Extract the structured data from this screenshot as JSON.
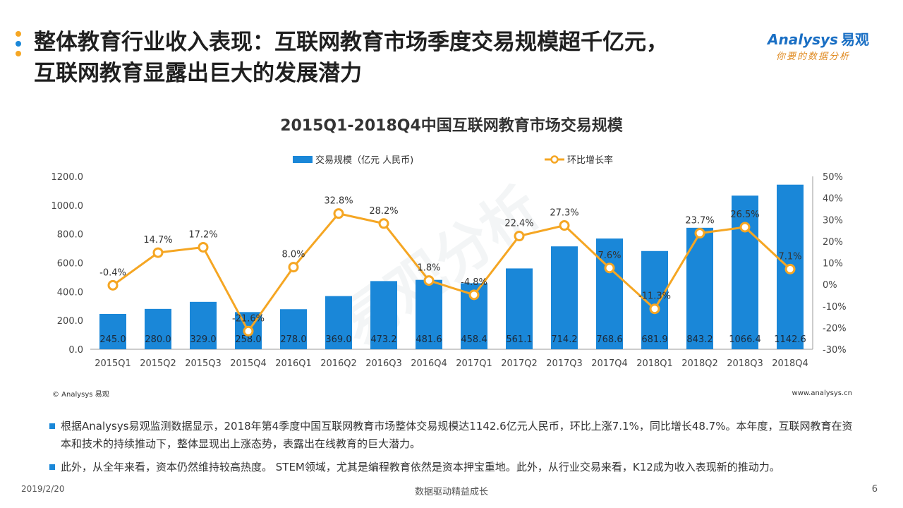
{
  "slide": {
    "title_line1": "整体教育行业收入表现：互联网教育市场季度交易规模超千亿元，",
    "title_line2": "互联网教育显露出巨大的发展潜力",
    "logo_main": "nalysys",
    "logo_prefix": "A",
    "logo_cn": "易观",
    "logo_slogan": "你要的数据分析",
    "bullet_colors": [
      "#f5a623",
      "#1a87d8",
      "#f5a623"
    ],
    "copyright": "© Analysys 易观",
    "website": "www.analysys.cn",
    "notes": [
      "根据Analysys易观监测数据显示，2018年第4季度中国互联网教育市场整体交易规模达1142.6亿元人民币，环比上涨7.1%，同比增长48.7%。本年度，互联网教育在资本和技术的持续推动下，整体显现出上涨态势，表露出在线教育的巨大潜力。",
      "此外，从全年来看，资本仍然维持较高热度。 STEM领域，尤其是编程教育依然是资本押宝重地。此外，从行业交易来看，K12成为收入表现新的推动力。"
    ],
    "footer_date": "2019/2/20",
    "footer_slogan": "数据驱动精益成长",
    "page_number": "6"
  },
  "chart_data": {
    "type": "bar+line",
    "title": "2015Q1-2018Q4中国互联网教育市场交易规模",
    "categories": [
      "2015Q1",
      "2015Q2",
      "2015Q3",
      "2015Q4",
      "2016Q1",
      "2016Q2",
      "2016Q3",
      "2016Q4",
      "2017Q1",
      "2017Q2",
      "2017Q3",
      "2017Q4",
      "2018Q1",
      "2018Q2",
      "2018Q3",
      "2018Q4"
    ],
    "series": [
      {
        "name": "交易规模（亿元 人民币)",
        "type": "bar",
        "color": "#1a87d8",
        "values": [
          245.0,
          280.0,
          329.0,
          258.0,
          278.0,
          369.0,
          473.2,
          481.6,
          458.4,
          561.1,
          714.2,
          768.6,
          681.9,
          843.2,
          1066.4,
          1142.6
        ],
        "labels": [
          "245.0",
          "280.0",
          "329.0",
          "258.0",
          "278.0",
          "369.0",
          "473.2",
          "481.6",
          "458.4",
          "561.1",
          "714.2",
          "768.6",
          "681.9",
          "843.2",
          "1066.4",
          "1142.6"
        ]
      },
      {
        "name": "环比增长率",
        "type": "line",
        "color": "#f5a623",
        "values": [
          -0.4,
          14.7,
          17.2,
          -21.6,
          8.0,
          32.8,
          28.2,
          1.8,
          -4.8,
          22.4,
          27.3,
          7.6,
          -11.3,
          23.7,
          26.5,
          7.1
        ],
        "labels": [
          "-0.4%",
          "14.7%",
          "17.2%",
          "-21.6%",
          "8.0%",
          "32.8%",
          "28.2%",
          "1.8%",
          "-4.8%",
          "22.4%",
          "27.3%",
          "7.6%",
          "-11.3%",
          "23.7%",
          "26.5%",
          "7.1%"
        ]
      }
    ],
    "y_left": {
      "min": 0,
      "max": 1200,
      "ticks": [
        "0.0",
        "200.0",
        "400.0",
        "600.0",
        "800.0",
        "1000.0",
        "1200.0"
      ]
    },
    "y_right": {
      "min": -30,
      "max": 50,
      "ticks": [
        "-30%",
        "-20%",
        "-10%",
        "0%",
        "10%",
        "20%",
        "30%",
        "40%",
        "50%"
      ]
    },
    "legend_position": "top-center",
    "watermark": "易观分析"
  }
}
